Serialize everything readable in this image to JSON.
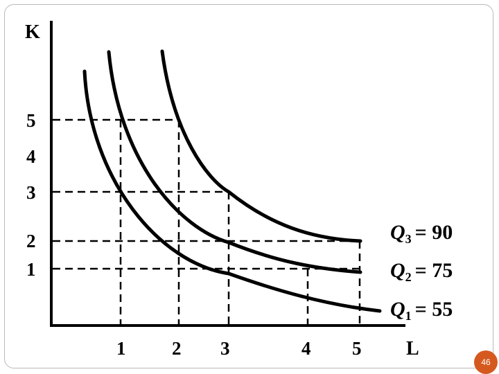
{
  "slide": {
    "page_number": "46"
  },
  "diagram": {
    "y_axis_title": "K",
    "x_axis_title": "L",
    "y_ticks": [
      "1",
      "2",
      "3",
      "4",
      "5"
    ],
    "x_ticks": [
      "1",
      "2",
      "3",
      "4",
      "5"
    ]
  },
  "isoquants": [
    {
      "symbol": "Q",
      "subscript": "1",
      "value": "= 55"
    },
    {
      "symbol": "Q",
      "subscript": "2",
      "value": "= 75"
    },
    {
      "symbol": "Q",
      "subscript": "3",
      "value": "= 90"
    }
  ]
}
